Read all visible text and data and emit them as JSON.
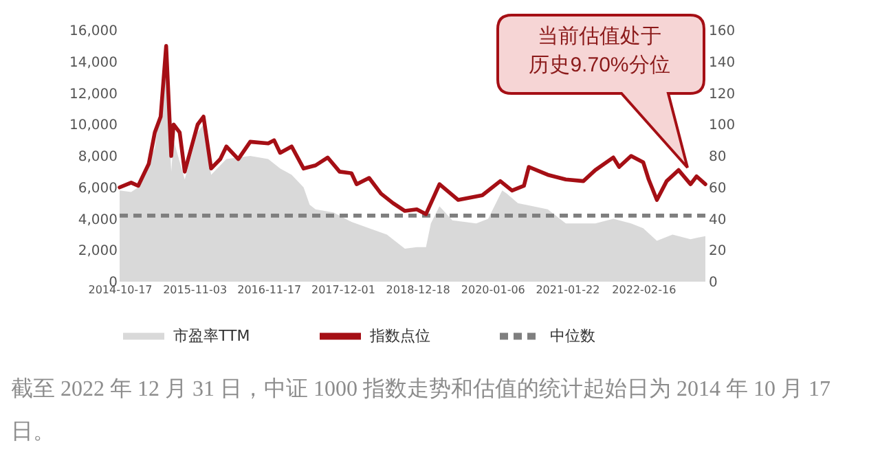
{
  "chart_data": {
    "type": "line",
    "series": [
      {
        "name": "市盈率TTM",
        "type": "area",
        "axis": "y2",
        "color": "#d9d9d9",
        "x": [
          "2014-10-17",
          "2014-12-15",
          "2015-01-20",
          "2015-04-15",
          "2015-06-12",
          "2015-07-08",
          "2015-07-20",
          "2015-09-15",
          "2015-11-20",
          "2015-12-20",
          "2016-01-28",
          "2016-04-15",
          "2016-08-15",
          "2016-11-15",
          "2017-01-15",
          "2017-03-15",
          "2017-05-15",
          "2017-06-15",
          "2017-07-15",
          "2017-10-15",
          "2018-01-15",
          "2018-04-15",
          "2018-07-15",
          "2018-10-15",
          "2018-12-15",
          "2019-01-31",
          "2019-02-25",
          "2019-04-10",
          "2019-06-15",
          "2019-10-15",
          "2019-12-15",
          "2020-02-25",
          "2020-03-20",
          "2020-05-15",
          "2020-10-15",
          "2021-01-15",
          "2021-06-15",
          "2021-09-15",
          "2021-12-15",
          "2022-02-15",
          "2022-04-26",
          "2022-07-15",
          "2022-10-15",
          "2022-12-30"
        ],
        "values": [
          58,
          57,
          60,
          85,
          140,
          70,
          90,
          65,
          95,
          100,
          68,
          78,
          80,
          78,
          72,
          68,
          60,
          49,
          46,
          44,
          38,
          34,
          30,
          21,
          22,
          22,
          37,
          48,
          39,
          37,
          40,
          58,
          56,
          50,
          46,
          37,
          37,
          40,
          37,
          34,
          26,
          30,
          27,
          29
        ]
      },
      {
        "name": "指数点位",
        "type": "line",
        "color": "#a50f15",
        "x": [
          "2014-10-17",
          "2014-12-15",
          "2015-01-20",
          "2015-03-15",
          "2015-04-15",
          "2015-05-15",
          "2015-06-12",
          "2015-07-08",
          "2015-07-20",
          "2015-08-20",
          "2015-09-15",
          "2015-11-20",
          "2015-12-20",
          "2016-01-28",
          "2016-03-15",
          "2016-04-15",
          "2016-06-15",
          "2016-08-15",
          "2016-11-15",
          "2016-12-15",
          "2017-01-15",
          "2017-03-15",
          "2017-05-15",
          "2017-07-15",
          "2017-09-15",
          "2017-11-15",
          "2018-01-15",
          "2018-02-10",
          "2018-04-15",
          "2018-06-15",
          "2018-08-15",
          "2018-10-15",
          "2018-12-15",
          "2019-01-31",
          "2019-04-10",
          "2019-07-15",
          "2019-11-15",
          "2020-02-15",
          "2020-04-15",
          "2020-06-15",
          "2020-07-10",
          "2020-10-15",
          "2021-01-15",
          "2021-04-15",
          "2021-06-15",
          "2021-09-15",
          "2021-10-15",
          "2021-12-15",
          "2022-02-15",
          "2022-03-15",
          "2022-04-26",
          "2022-06-15",
          "2022-08-15",
          "2022-10-15",
          "2022-11-15",
          "2022-12-30"
        ],
        "values": [
          6000,
          6300,
          6100,
          7500,
          9500,
          10500,
          15000,
          8000,
          10000,
          9500,
          7000,
          10000,
          10500,
          7200,
          7800,
          8600,
          7800,
          8900,
          8800,
          9000,
          8200,
          8600,
          7200,
          7400,
          7900,
          7000,
          6900,
          6200,
          6600,
          5600,
          5000,
          4500,
          4600,
          4300,
          6200,
          5200,
          5500,
          6400,
          5800,
          6100,
          7300,
          6800,
          6500,
          6400,
          7100,
          7900,
          7300,
          8000,
          7600,
          6500,
          5200,
          6400,
          7100,
          6200,
          6700,
          6200
        ]
      }
    ],
    "ref_lines": [
      {
        "axis": "y2",
        "value": 42,
        "label": "中位数",
        "color": "#7f7f7f",
        "line_style": "dashed"
      }
    ],
    "xlim": [
      "2014-10-17",
      "2022-12-30"
    ],
    "xticks": [
      "2014-10-17",
      "2015-11-03",
      "2016-11-17",
      "2017-12-01",
      "2018-12-18",
      "2020-01-06",
      "2021-01-22",
      "2022-02-16"
    ],
    "ylim": [
      0,
      16000
    ],
    "yticks": [
      0,
      {
        "value": 2000,
        "label": "2,000"
      },
      {
        "value": 4000,
        "label": "4,000"
      },
      {
        "value": 6000,
        "label": "6,000"
      },
      {
        "value": 8000,
        "label": "8,000"
      },
      {
        "value": 10000,
        "label": "10,000"
      },
      {
        "value": 12000,
        "label": "12,000"
      },
      {
        "value": 14000,
        "label": "14,000"
      },
      {
        "value": 16000,
        "label": "16,000"
      }
    ],
    "y2lim": [
      0,
      160
    ],
    "y2ticks": [
      0,
      20,
      40,
      60,
      80,
      100,
      120,
      140,
      160
    ],
    "grid": false,
    "legend": "bottom",
    "annotations": [
      "当前估值处于历史9.70%分位",
      "截至 2022 年 12 月 31 日，中证 1000 指数走势和估值的统计起始日为 2014 年 10 月 17 日。"
    ]
  }
}
